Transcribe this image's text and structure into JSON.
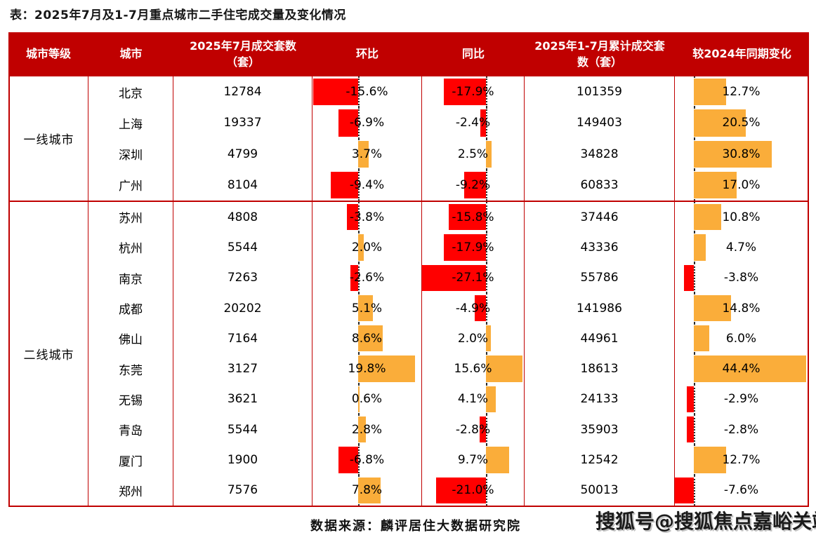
{
  "title": "表：2025年7月及1-7月重点城市二手住宅成交量及变化情况",
  "source": "数据来源：麟评居住大数据研究院",
  "watermark": "搜狐号@搜狐焦点嘉峪关站",
  "colors": {
    "header_bg": "#C00000",
    "table_border": "#C00000",
    "negative_bar": "#FF0000",
    "positive_bar": "#FAAD3A",
    "header_text": "#FFFFFF"
  },
  "columns": [
    "城市等级",
    "城市",
    "2025年7月成交套数（套）",
    "环比",
    "同比",
    "2025年1-7月累计成交套数（套）",
    "较2024年同期变化"
  ],
  "chart_data": {
    "type": "table",
    "title": "2025年7月及1-7月重点城市二手住宅成交量及变化情况",
    "bar_columns": [
      "环比",
      "同比",
      "较2024年同期变化"
    ],
    "bar_style": {
      "negative": "red bar extends left of dotted zero axis",
      "positive": "orange bar extends right of dotted zero axis"
    },
    "groups": [
      {
        "tier": "一线城市",
        "rows": [
          {
            "city": "北京",
            "jul_units": "12784",
            "mom": -15.6,
            "mom_label": "-15.6%",
            "yoy": -17.9,
            "yoy_label": "-17.9%",
            "cum_units": "101359",
            "ytd": 12.7,
            "ytd_label": "12.7%"
          },
          {
            "city": "上海",
            "jul_units": "19337",
            "mom": -6.9,
            "mom_label": "-6.9%",
            "yoy": -2.4,
            "yoy_label": "-2.4%",
            "cum_units": "149403",
            "ytd": 20.5,
            "ytd_label": "20.5%"
          },
          {
            "city": "深圳",
            "jul_units": "4799",
            "mom": 3.7,
            "mom_label": "3.7%",
            "yoy": 2.5,
            "yoy_label": "2.5%",
            "cum_units": "34828",
            "ytd": 30.8,
            "ytd_label": "30.8%"
          },
          {
            "city": "广州",
            "jul_units": "8104",
            "mom": -9.4,
            "mom_label": "-9.4%",
            "yoy": -9.2,
            "yoy_label": "-9.2%",
            "cum_units": "60833",
            "ytd": 17.0,
            "ytd_label": "17.0%"
          }
        ]
      },
      {
        "tier": "二线城市",
        "rows": [
          {
            "city": "苏州",
            "jul_units": "4808",
            "mom": -3.8,
            "mom_label": "-3.8%",
            "yoy": -15.8,
            "yoy_label": "-15.8%",
            "cum_units": "37446",
            "ytd": 10.8,
            "ytd_label": "10.8%"
          },
          {
            "city": "杭州",
            "jul_units": "5544",
            "mom": 2.0,
            "mom_label": "2.0%",
            "yoy": -17.9,
            "yoy_label": "-17.9%",
            "cum_units": "43336",
            "ytd": 4.7,
            "ytd_label": "4.7%"
          },
          {
            "city": "南京",
            "jul_units": "7263",
            "mom": -2.6,
            "mom_label": "-2.6%",
            "yoy": -27.1,
            "yoy_label": "-27.1%",
            "cum_units": "55786",
            "ytd": -3.8,
            "ytd_label": "-3.8%"
          },
          {
            "city": "成都",
            "jul_units": "20202",
            "mom": 5.1,
            "mom_label": "5.1%",
            "yoy": -4.9,
            "yoy_label": "-4.9%",
            "cum_units": "141986",
            "ytd": 14.8,
            "ytd_label": "14.8%"
          },
          {
            "city": "佛山",
            "jul_units": "7164",
            "mom": 8.6,
            "mom_label": "8.6%",
            "yoy": 2.0,
            "yoy_label": "2.0%",
            "cum_units": "44961",
            "ytd": 6.0,
            "ytd_label": "6.0%"
          },
          {
            "city": "东莞",
            "jul_units": "3127",
            "mom": 19.8,
            "mom_label": "19.8%",
            "yoy": 15.6,
            "yoy_label": "15.6%",
            "cum_units": "18613",
            "ytd": 44.4,
            "ytd_label": "44.4%"
          },
          {
            "city": "无锡",
            "jul_units": "3621",
            "mom": 0.6,
            "mom_label": "0.6%",
            "yoy": 4.1,
            "yoy_label": "4.1%",
            "cum_units": "24133",
            "ytd": -2.9,
            "ytd_label": "-2.9%"
          },
          {
            "city": "青岛",
            "jul_units": "5544",
            "mom": 2.8,
            "mom_label": "2.8%",
            "yoy": -2.8,
            "yoy_label": "-2.8%",
            "cum_units": "35903",
            "ytd": -2.8,
            "ytd_label": "-2.8%"
          },
          {
            "city": "厦门",
            "jul_units": "1900",
            "mom": -6.8,
            "mom_label": "-6.8%",
            "yoy": 9.7,
            "yoy_label": "9.7%",
            "cum_units": "12542",
            "ytd": 12.7,
            "ytd_label": "12.7%"
          },
          {
            "city": "郑州",
            "jul_units": "7576",
            "mom": 7.8,
            "mom_label": "7.8%",
            "yoy": -21.0,
            "yoy_label": "-21.0%",
            "cum_units": "50013",
            "ytd": -7.6,
            "ytd_label": "-7.6%"
          }
        ]
      }
    ]
  }
}
